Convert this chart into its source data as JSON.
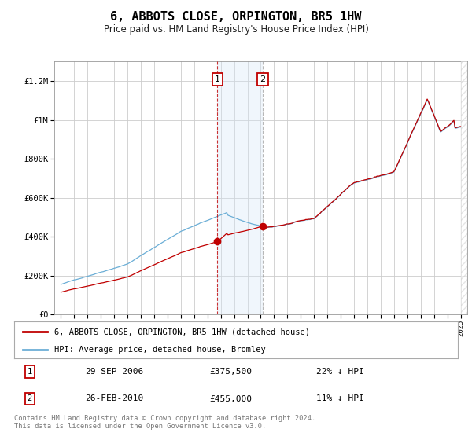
{
  "title": "6, ABBOTS CLOSE, ORPINGTON, BR5 1HW",
  "subtitle": "Price paid vs. HM Land Registry's House Price Index (HPI)",
  "legend_line1": "6, ABBOTS CLOSE, ORPINGTON, BR5 1HW (detached house)",
  "legend_line2": "HPI: Average price, detached house, Bromley",
  "footer": "Contains HM Land Registry data © Crown copyright and database right 2024.\nThis data is licensed under the Open Government Licence v3.0.",
  "transaction1_date": "29-SEP-2006",
  "transaction1_price": "£375,500",
  "transaction1_hpi": "22% ↓ HPI",
  "transaction2_date": "26-FEB-2010",
  "transaction2_price": "£455,000",
  "transaction2_hpi": "11% ↓ HPI",
  "hpi_color": "#6baed6",
  "sold_color": "#c00000",
  "background_color": "#ffffff",
  "grid_color": "#cccccc",
  "shade_color": "#d6e8f7",
  "marker1_x": 2006.75,
  "marker2_x": 2010.15,
  "sale1_price": 375500,
  "sale2_price": 455000,
  "ylim": [
    0,
    1300000
  ],
  "xlim": [
    1994.5,
    2025.5
  ]
}
